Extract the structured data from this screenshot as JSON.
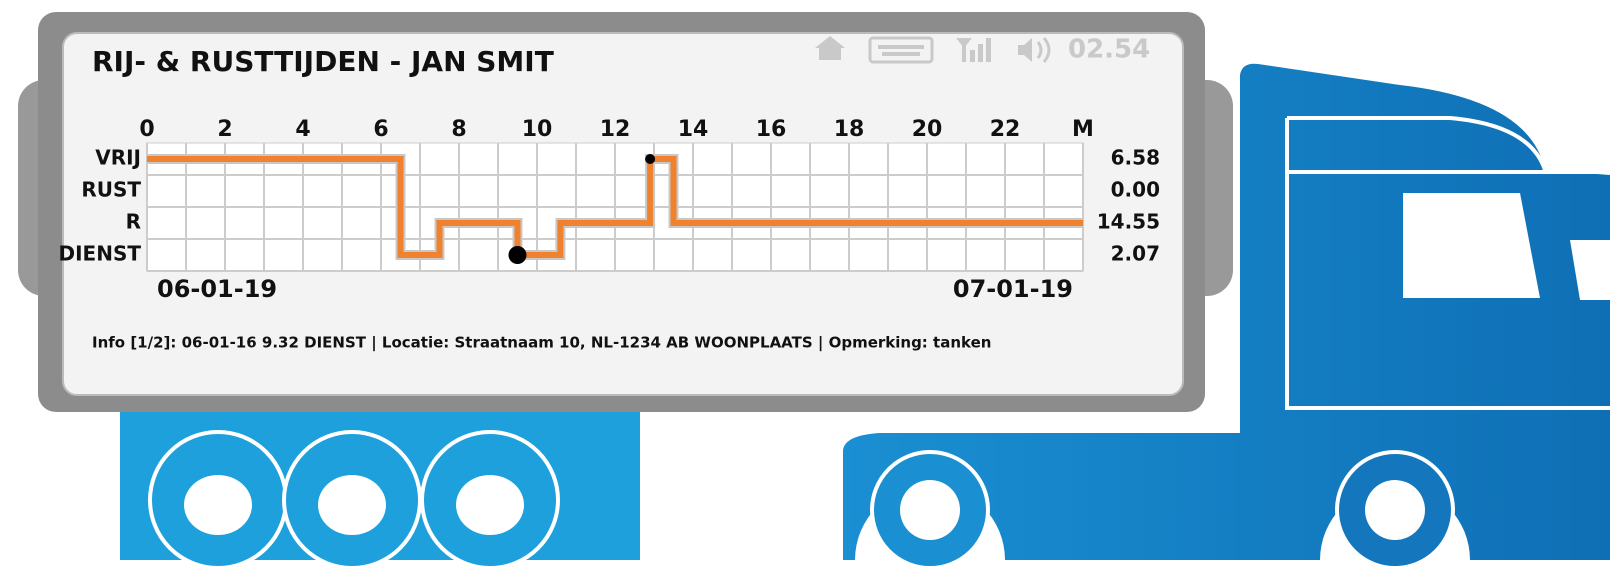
{
  "status_bar": {
    "clock": "02.54"
  },
  "chart_data": {
    "type": "step",
    "title": "RIJ- & RUSTTIJDEN - JAN SMIT",
    "xlim": [
      0,
      24
    ],
    "xticks": [
      0,
      2,
      4,
      6,
      8,
      10,
      12,
      14,
      16,
      18,
      20,
      22,
      {
        "value": 24,
        "label": "M"
      }
    ],
    "ylim": [
      3.5,
      -0.5
    ],
    "yticks": [
      {
        "value": 0,
        "label": "VRIJ"
      },
      {
        "value": 1,
        "label": "RUST"
      },
      {
        "value": 2,
        "label": "R"
      },
      {
        "value": 3,
        "label": "DIENST"
      }
    ],
    "row_totals": [
      "6.58",
      "0.00",
      "14.55",
      "2.07"
    ],
    "grid": true,
    "series": [
      {
        "color": "#f0812d",
        "x": [
          0,
          6.5,
          6.5,
          7.5,
          7.5,
          9.5,
          9.5,
          10.6,
          10.6,
          12.9,
          12.9,
          13.5,
          13.5,
          24
        ],
        "values": [
          0,
          0,
          3,
          3,
          2,
          2,
          3,
          3,
          2,
          2,
          0,
          0,
          2,
          2
        ]
      }
    ],
    "markers": [
      {
        "x": 9.5,
        "y": 3
      },
      {
        "x": 12.9,
        "y": 0
      }
    ],
    "start_date": "06-01-19",
    "end_date": "07-01-19",
    "info": "Info [1/2]: 06-01-16 9.32 DIENST | Locatie: Straatnaam 10, NL-1234 AB  WOONPLAATS | Opmerking: tanken"
  }
}
